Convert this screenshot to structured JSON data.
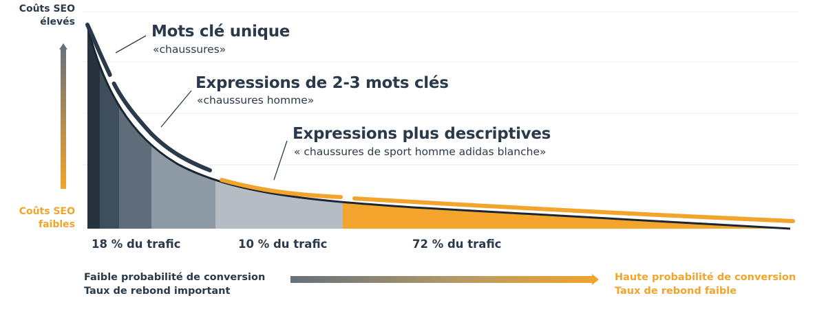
{
  "left_axis": {
    "high_cost": [
      "Coûts SEO",
      "élevés"
    ],
    "low_cost": [
      "Coûts SEO",
      "faibles"
    ]
  },
  "categories": [
    {
      "title": "Mots clé unique",
      "example": "«chaussures»"
    },
    {
      "title": "Expressions de 2-3 mots clés",
      "example": "«chaussures homme»"
    },
    {
      "title": "Expressions plus descriptives",
      "example": "« chaussures de sport homme adidas blanche»"
    }
  ],
  "traffic": [
    {
      "label": "18 % du trafic",
      "share": 18
    },
    {
      "label": "10 % du trafic",
      "share": 10
    },
    {
      "label": "72 % du trafic",
      "share": 72
    }
  ],
  "bottom": {
    "left": [
      "Faible probabilité de conversion",
      "Taux de rebond important"
    ],
    "right": [
      "Haute probabilité de conversion",
      "Taux de rebond faible"
    ]
  },
  "colors": {
    "navy": "#2b3a4a",
    "orange": "#f2a42c",
    "segment_shades": [
      "#26333f",
      "#3f4e5c",
      "#5f6d7a",
      "#8d99a4",
      "#b4bcc4",
      "#f2a42c"
    ]
  }
}
